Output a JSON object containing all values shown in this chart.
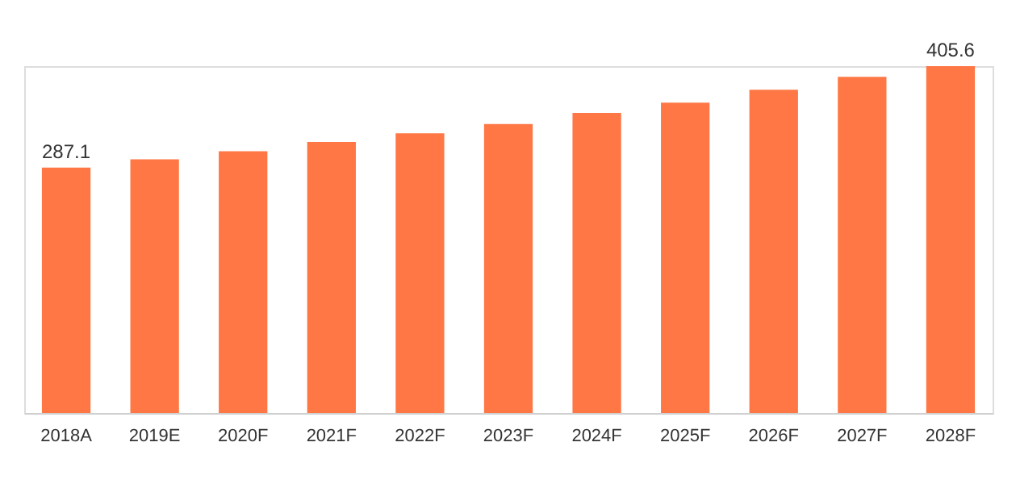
{
  "chart_data": {
    "type": "bar",
    "categories": [
      "2018A",
      "2019E",
      "2020F",
      "2021F",
      "2022F",
      "2023F",
      "2024F",
      "2025F",
      "2026F",
      "2027F",
      "2028F"
    ],
    "values": [
      287.1,
      296.6,
      306,
      317,
      327,
      338,
      351,
      363,
      378,
      393,
      405.6
    ],
    "value_labels": [
      "287.1",
      null,
      null,
      null,
      null,
      null,
      null,
      null,
      null,
      null,
      "405.6"
    ],
    "color": "#ff7744",
    "grid": false
  }
}
